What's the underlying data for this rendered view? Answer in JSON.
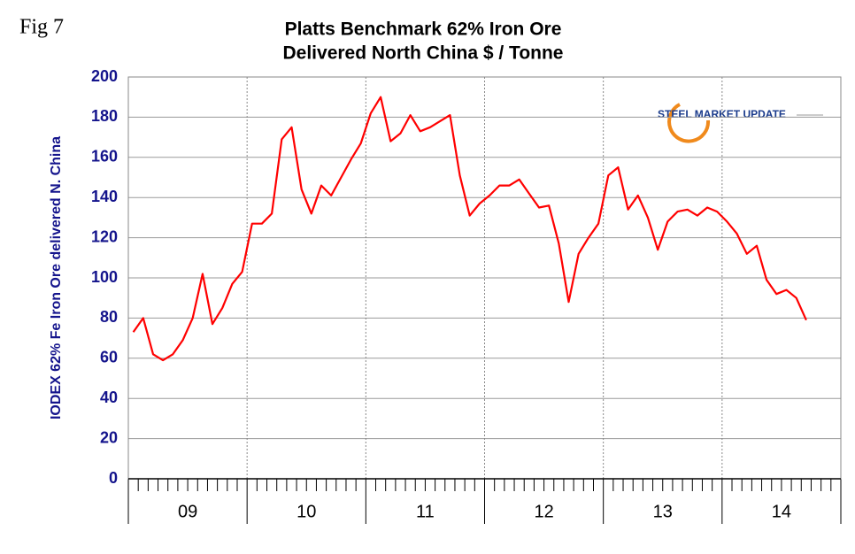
{
  "chart_data": {
    "type": "line",
    "fig_label": "Fig 7",
    "title": "Platts Benchmark 62% Iron Ore",
    "subtitle": "Delivered North China $ / Tonne",
    "y_label": "IODEX 62% Fe Iron Ore delivered N. China",
    "logo": "STEEL MARKET UPDATE",
    "x_groups": [
      "09",
      "10",
      "11",
      "12",
      "13",
      "14"
    ],
    "categories": [
      null,
      null,
      null,
      null,
      null,
      null,
      null,
      null,
      null,
      null,
      null,
      null,
      null,
      null,
      null,
      null,
      null,
      null,
      null,
      null,
      null,
      null,
      null,
      null,
      null,
      null,
      null,
      null,
      null,
      null,
      null,
      null,
      null,
      null,
      null,
      null,
      null,
      null,
      null,
      null,
      null,
      null,
      null,
      null,
      null,
      null,
      null,
      null,
      null,
      null,
      null,
      null,
      null,
      null,
      null,
      null,
      null,
      null,
      null,
      null,
      null,
      null,
      null,
      null,
      null,
      null,
      null,
      null,
      null,
      null,
      null,
      null
    ],
    "series": [
      {
        "name": "IODEX 62% Fe Iron Ore delivered N. China",
        "color": "#ff0000",
        "values": [
          73,
          80,
          62,
          59,
          62,
          69,
          80,
          102,
          77,
          85,
          97,
          103,
          127,
          127,
          132,
          169,
          175,
          144,
          132,
          146,
          141,
          150,
          159,
          167,
          182,
          190,
          168,
          172,
          181,
          173,
          175,
          178,
          181,
          151,
          131,
          137,
          141,
          146,
          146,
          149,
          142,
          135,
          136,
          117,
          88,
          112,
          120,
          127,
          151,
          155,
          134,
          141,
          130,
          114,
          128,
          133,
          134,
          131,
          135,
          133,
          128,
          122,
          112,
          116,
          99,
          92,
          94,
          90,
          79,
          null,
          null,
          null
        ]
      }
    ],
    "ylim": [
      0,
      200
    ],
    "yticks": [
      0,
      20,
      40,
      60,
      80,
      100,
      120,
      140,
      160,
      180,
      200
    ],
    "grid": true
  }
}
